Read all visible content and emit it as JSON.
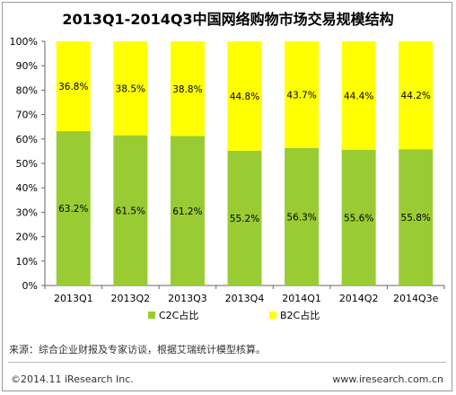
{
  "title": "2013Q1-2014Q3中国网络购物市场交易规模结构",
  "source_text": "来源：综合企业财报及专家访谈，根据艾瑞统计模型核算。",
  "copyright": "©2014.11 iResearch Inc.",
  "website": "www.iresearch.com.cn",
  "chart_data": {
    "type": "bar",
    "stacked": true,
    "title": "2013Q1-2014Q3中国网络购物市场交易规模结构",
    "categories": [
      "2013Q1",
      "2013Q2",
      "2013Q3",
      "2013Q4",
      "2014Q1",
      "2014Q2",
      "2014Q3e"
    ],
    "series": [
      {
        "name": "C2C占比",
        "color": "#99cc33",
        "values": [
          63.2,
          61.5,
          61.2,
          55.2,
          56.3,
          55.6,
          55.8
        ],
        "labels": [
          "63.2%",
          "61.5%",
          "61.2%",
          "55.2%",
          "56.3%",
          "55.6%",
          "55.8%"
        ]
      },
      {
        "name": "B2C占比",
        "color": "#ffff00",
        "values": [
          36.8,
          38.5,
          38.8,
          44.8,
          43.7,
          44.4,
          44.2
        ],
        "labels": [
          "36.8%",
          "38.5%",
          "38.8%",
          "44.8%",
          "43.7%",
          "44.4%",
          "44.2%"
        ]
      }
    ],
    "ylim": [
      0,
      100
    ],
    "yticks": [
      "0%",
      "10%",
      "20%",
      "30%",
      "40%",
      "50%",
      "60%",
      "70%",
      "80%",
      "90%",
      "100%"
    ],
    "grid": false,
    "legend": "bottom"
  }
}
